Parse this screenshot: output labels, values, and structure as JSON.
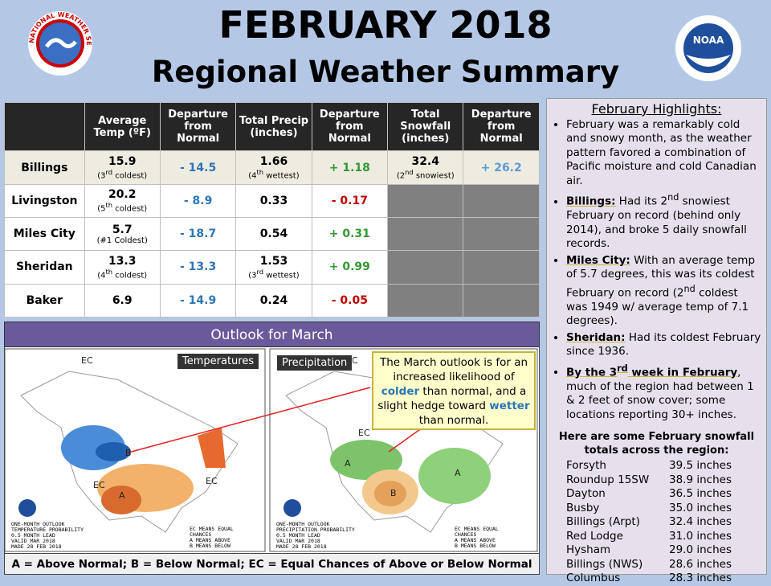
{
  "header": {
    "title": "FEBRUARY 2018",
    "subtitle": "Regional Weather Summary",
    "nws_logo": "NATIONAL WEATHER SERVICE",
    "noaa_logo": "NOAA"
  },
  "table": {
    "columns": [
      "Average Temp (ºF)",
      "Departure from Normal",
      "Total Precip (inches)",
      "Departure from Normal",
      "Total Snowfall (inches)",
      "Departure from Normal"
    ],
    "rows": [
      {
        "station": "Billings",
        "temp": "15.9",
        "temp_note": [
          "(3",
          {
            "sup": "rd"
          },
          " coldest)"
        ],
        "temp_dep": "- 14.5",
        "precip": "1.66",
        "precip_note": [
          "(4",
          {
            "sup": "th"
          },
          " wettest)"
        ],
        "precip_dep": "+ 1.18",
        "snow": "32.4",
        "snow_note": [
          "(2",
          {
            "sup": "nd"
          },
          " snowiest)"
        ],
        "snow_dep": "+ 26.2"
      },
      {
        "station": "Livingston",
        "temp": "20.2",
        "temp_note": [
          "(5",
          {
            "sup": "th"
          },
          " coldest)"
        ],
        "temp_dep": "- 8.9",
        "precip": "0.33",
        "precip_note": null,
        "precip_dep": "- 0.17",
        "snow": null,
        "snow_note": null,
        "snow_dep": null
      },
      {
        "station": "Miles City",
        "temp": "5.7",
        "temp_note": [
          "(#1 Coldest)"
        ],
        "temp_dep": "- 18.7",
        "precip": "0.54",
        "precip_note": null,
        "precip_dep": "+ 0.31",
        "snow": null,
        "snow_note": null,
        "snow_dep": null
      },
      {
        "station": "Sheridan",
        "temp": "13.3",
        "temp_note": [
          "(4",
          {
            "sup": "th"
          },
          " coldest)"
        ],
        "temp_dep": "- 13.3",
        "precip": "1.53",
        "precip_note": [
          "(3",
          {
            "sup": "rd"
          },
          " wettest)"
        ],
        "precip_dep": "+ 0.99",
        "snow": null,
        "snow_note": null,
        "snow_dep": null
      },
      {
        "station": "Baker",
        "temp": "6.9",
        "temp_note": null,
        "temp_dep": "- 14.9",
        "precip": "0.24",
        "precip_note": null,
        "precip_dep": "- 0.05",
        "snow": null,
        "snow_note": null,
        "snow_dep": null
      }
    ]
  },
  "outlook": {
    "title": "Outlook for March",
    "temp_label": "Temperatures",
    "precip_label": "Precipitation",
    "callout": [
      "The March outlook is for an increased likelihood of ",
      {
        "c": "colder"
      },
      " than normal, and a slight hedge toward ",
      {
        "c": "wetter"
      },
      " than normal."
    ],
    "temp_map_labels": [
      "EC",
      "B",
      "A",
      "EC",
      "EC"
    ],
    "precip_map_labels": [
      "EC",
      "A",
      "B",
      "EC",
      "A"
    ],
    "temp_caption": [
      "ONE-MONTH OUTLOOK",
      "TEMPERATURE PROBABILITY",
      "0.5 MONTH LEAD",
      "VALID MAR 2018",
      "MADE 28 FEB 2018"
    ],
    "precip_caption": [
      "ONE-MONTH OUTLOOK",
      "PRECIPITATION PROBABILITY",
      "0.5 MONTH LEAD",
      "VALID MAR 2018",
      "MADE 28 FEB 2018"
    ],
    "map_key": [
      "EC MEANS EQUAL",
      "CHANCES",
      "A MEANS ABOVE",
      "B MEANS BELOW"
    ],
    "footer": "A = Above Normal;  B = Below Normal;  EC = Equal Chances of Above or Below Normal"
  },
  "highlights": {
    "title": "February Highlights:",
    "items": [
      [
        "February was a remarkably cold and snowy month, as the weather pattern favored a combination of Pacific moisture and cold Canadian air."
      ],
      [
        {
          "b": "Billings:"
        },
        " Had its 2",
        {
          "sup": "nd"
        },
        " snowiest February on record (behind only 2014), and broke 5 daily snowfall records."
      ],
      [
        {
          "b": "Miles City:"
        },
        " With an average temp of 5.7 degrees, this was its coldest February on record (2",
        {
          "sup": "nd"
        },
        " coldest was 1949 w/ average temp of 7.1 degrees)."
      ],
      [
        {
          "b": "Sheridan:"
        },
        " Had its coldest February since 1936."
      ],
      [
        {
          "b": "By the 3"
        },
        {
          "bsup": "rd"
        },
        {
          "b": " week in February"
        },
        ", much of the region had between 1 & 2 feet of snow cover; some locations reporting 30+ inches."
      ]
    ],
    "snow_intro": "Here are some February snowfall totals across the region:",
    "snow_totals": [
      {
        "name": "Forsyth",
        "total": "39.5 inches"
      },
      {
        "name": "Roundup 15SW",
        "total": "38.9 inches"
      },
      {
        "name": "Dayton",
        "total": "36.5 inches"
      },
      {
        "name": "Busby",
        "total": "35.0 inches"
      },
      {
        "name": "Billings (Arpt)",
        "total": "32.4 inches"
      },
      {
        "name": "Red Lodge",
        "total": "31.0 inches"
      },
      {
        "name": "Hysham",
        "total": "29.0 inches"
      },
      {
        "name": "Billings (NWS)",
        "total": "28.6 inches"
      },
      {
        "name": "Columbus",
        "total": "28.3 inches"
      }
    ]
  }
}
